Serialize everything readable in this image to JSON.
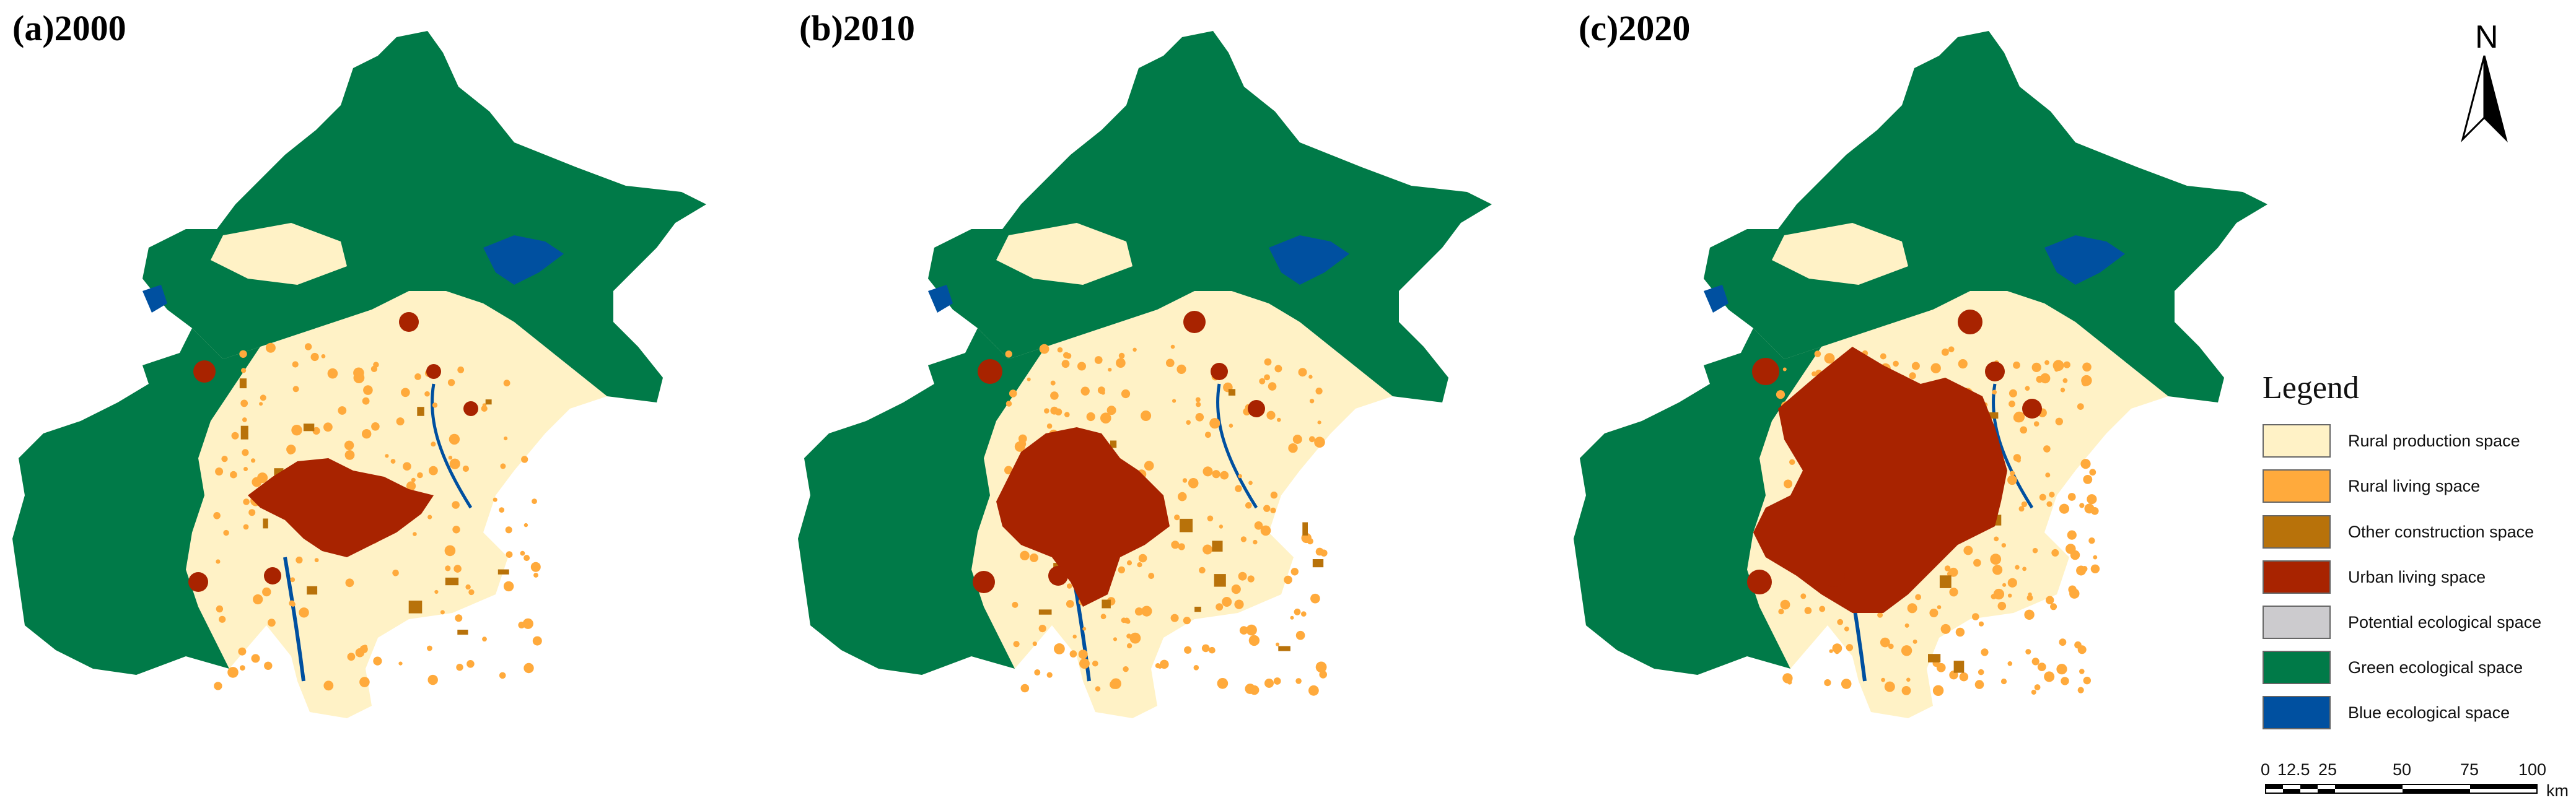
{
  "panels": [
    {
      "label": "(a)2000"
    },
    {
      "label": "(b)2010"
    },
    {
      "label": "(c)2020"
    }
  ],
  "north_arrow": {
    "letter": "N"
  },
  "legend": {
    "title": "Legend",
    "items": [
      {
        "label": "Rural production space",
        "color": "#FFF2C6"
      },
      {
        "label": "Rural living space",
        "color": "#FFAA3C"
      },
      {
        "label": "Other construction space",
        "color": "#B8720A"
      },
      {
        "label": "Urban living space",
        "color": "#A82300"
      },
      {
        "label": "Potential ecological space",
        "color": "#CCCBCE"
      },
      {
        "label": "Green ecological space",
        "color": "#007A48"
      },
      {
        "label": "Blue ecological space",
        "color": "#0050A0"
      }
    ]
  },
  "scale_bar": {
    "ticks": [
      "0",
      "12.5",
      "25",
      "50",
      "75",
      "100"
    ],
    "unit": "km"
  }
}
